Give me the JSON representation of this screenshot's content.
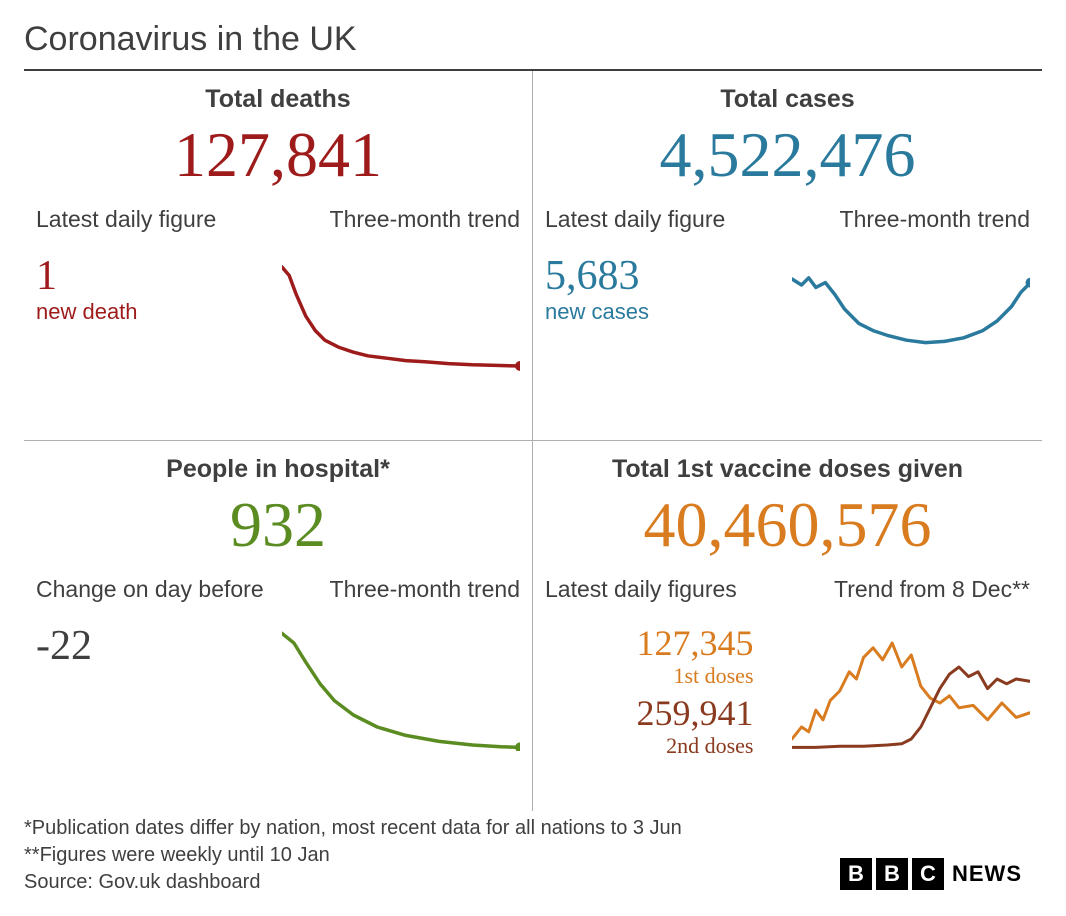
{
  "title": "Coronavirus in the UK",
  "colors": {
    "deaths": "#9e1b1b",
    "cases": "#2a7a9e",
    "hospital": "#5b8c22",
    "vaccine1": "#d97b1f",
    "vaccine2": "#8a3a1f",
    "text": "#3f3f3f",
    "rule": "#b0b0b0",
    "bg": "#ffffff"
  },
  "panels": {
    "deaths": {
      "title": "Total deaths",
      "total": "127,841",
      "daily_label": "Latest daily figure",
      "trend_label": "Three-month trend",
      "daily_value": "1",
      "daily_caption": "new death",
      "sparkline": {
        "type": "line",
        "stroke_width": 3.5,
        "dot_end": true,
        "points": [
          [
            0,
            0.05
          ],
          [
            0.03,
            0.12
          ],
          [
            0.06,
            0.28
          ],
          [
            0.1,
            0.46
          ],
          [
            0.14,
            0.58
          ],
          [
            0.18,
            0.66
          ],
          [
            0.24,
            0.72
          ],
          [
            0.3,
            0.76
          ],
          [
            0.36,
            0.79
          ],
          [
            0.44,
            0.81
          ],
          [
            0.52,
            0.83
          ],
          [
            0.6,
            0.84
          ],
          [
            0.7,
            0.855
          ],
          [
            0.8,
            0.865
          ],
          [
            0.9,
            0.87
          ],
          [
            1.0,
            0.875
          ]
        ]
      }
    },
    "cases": {
      "title": "Total cases",
      "total": "4,522,476",
      "daily_label": "Latest daily figure",
      "trend_label": "Three-month trend",
      "daily_value": "5,683",
      "daily_caption": "new cases",
      "sparkline": {
        "type": "line",
        "stroke_width": 3.5,
        "dot_end": true,
        "points": [
          [
            0,
            0.15
          ],
          [
            0.04,
            0.2
          ],
          [
            0.07,
            0.14
          ],
          [
            0.1,
            0.22
          ],
          [
            0.14,
            0.18
          ],
          [
            0.18,
            0.28
          ],
          [
            0.22,
            0.4
          ],
          [
            0.28,
            0.52
          ],
          [
            0.34,
            0.58
          ],
          [
            0.4,
            0.62
          ],
          [
            0.48,
            0.66
          ],
          [
            0.56,
            0.68
          ],
          [
            0.64,
            0.67
          ],
          [
            0.72,
            0.64
          ],
          [
            0.8,
            0.58
          ],
          [
            0.86,
            0.5
          ],
          [
            0.92,
            0.38
          ],
          [
            0.96,
            0.26
          ],
          [
            1.0,
            0.18
          ]
        ]
      }
    },
    "hospital": {
      "title": "People in hospital*",
      "total": "932",
      "daily_label": "Change on day before",
      "trend_label": "Three-month trend",
      "daily_value": "-22",
      "daily_caption": "",
      "sparkline": {
        "type": "line",
        "stroke_width": 3.5,
        "dot_end": true,
        "points": [
          [
            0,
            0.02
          ],
          [
            0.05,
            0.1
          ],
          [
            0.1,
            0.26
          ],
          [
            0.16,
            0.44
          ],
          [
            0.22,
            0.58
          ],
          [
            0.3,
            0.7
          ],
          [
            0.4,
            0.8
          ],
          [
            0.52,
            0.87
          ],
          [
            0.66,
            0.92
          ],
          [
            0.8,
            0.95
          ],
          [
            0.92,
            0.965
          ],
          [
            1.0,
            0.97
          ]
        ]
      }
    },
    "vaccine": {
      "title": "Total 1st vaccine doses given",
      "total": "40,460,576",
      "daily_label": "Latest daily figures",
      "trend_label": "Trend from 8 Dec**",
      "first_value": "127,345",
      "first_caption": "1st doses",
      "second_value": "259,941",
      "second_caption": "2nd doses",
      "sparkline_first": {
        "type": "line",
        "stroke_width": 3,
        "points": [
          [
            0,
            0.9
          ],
          [
            0.04,
            0.8
          ],
          [
            0.07,
            0.84
          ],
          [
            0.1,
            0.66
          ],
          [
            0.13,
            0.74
          ],
          [
            0.16,
            0.58
          ],
          [
            0.2,
            0.5
          ],
          [
            0.24,
            0.34
          ],
          [
            0.27,
            0.4
          ],
          [
            0.3,
            0.22
          ],
          [
            0.34,
            0.14
          ],
          [
            0.38,
            0.24
          ],
          [
            0.42,
            0.1
          ],
          [
            0.46,
            0.3
          ],
          [
            0.5,
            0.2
          ],
          [
            0.54,
            0.46
          ],
          [
            0.58,
            0.56
          ],
          [
            0.62,
            0.6
          ],
          [
            0.66,
            0.54
          ],
          [
            0.7,
            0.64
          ],
          [
            0.76,
            0.62
          ],
          [
            0.82,
            0.74
          ],
          [
            0.88,
            0.6
          ],
          [
            0.94,
            0.72
          ],
          [
            1.0,
            0.68
          ]
        ]
      },
      "sparkline_second": {
        "type": "line",
        "stroke_width": 3,
        "points": [
          [
            0,
            0.97
          ],
          [
            0.1,
            0.97
          ],
          [
            0.2,
            0.96
          ],
          [
            0.3,
            0.96
          ],
          [
            0.4,
            0.95
          ],
          [
            0.46,
            0.94
          ],
          [
            0.5,
            0.9
          ],
          [
            0.54,
            0.8
          ],
          [
            0.58,
            0.64
          ],
          [
            0.62,
            0.48
          ],
          [
            0.66,
            0.36
          ],
          [
            0.7,
            0.3
          ],
          [
            0.74,
            0.38
          ],
          [
            0.78,
            0.34
          ],
          [
            0.82,
            0.48
          ],
          [
            0.86,
            0.4
          ],
          [
            0.9,
            0.44
          ],
          [
            0.94,
            0.4
          ],
          [
            1.0,
            0.42
          ]
        ]
      }
    }
  },
  "footnotes": {
    "line1": "*Publication dates differ by nation, most recent data for all nations to 3 Jun",
    "line2": "**Figures were weekly until 10 Jan",
    "source": "Source: Gov.uk dashboard"
  },
  "logo": {
    "b1": "B",
    "b2": "B",
    "b3": "C",
    "news": "NEWS"
  }
}
